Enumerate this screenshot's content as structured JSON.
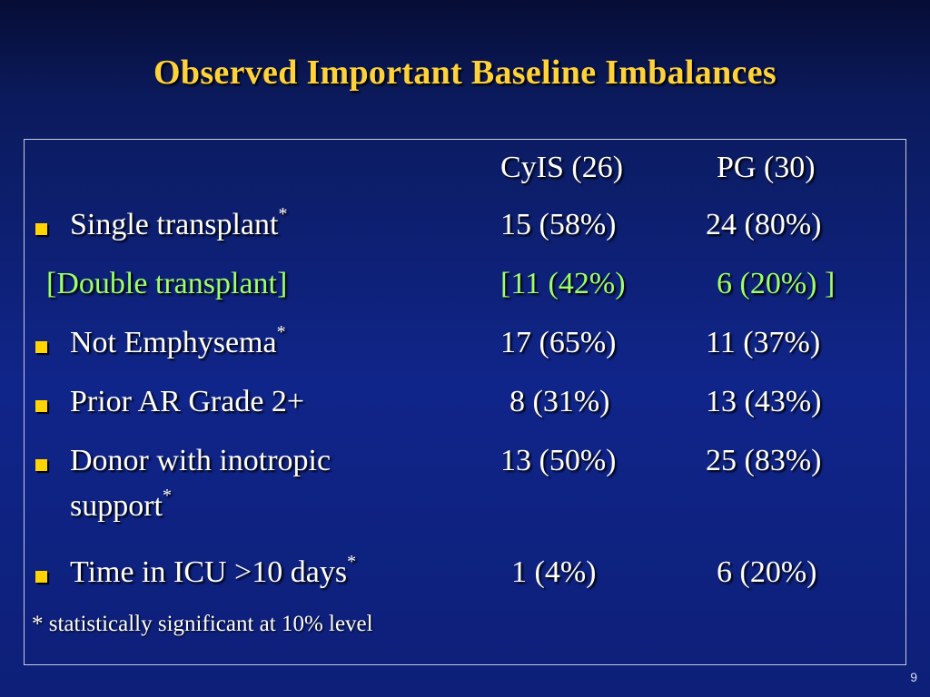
{
  "slide": {
    "title": "Observed Important Baseline Imbalances",
    "number": "9"
  },
  "table": {
    "headers": [
      "CyIS (26)",
      "PG (30)"
    ],
    "rows": [
      {
        "label": "Single transplant",
        "marker": "*",
        "bulleted": true,
        "cyis": "15 (58%)",
        "pg": "24 (80%)"
      },
      {
        "label": "[Double transplant]",
        "marker": "",
        "bulleted": false,
        "cyis": "[11 (42%)",
        "pg": "6 (20%) ]"
      },
      {
        "label": "Not Emphysema",
        "marker": "*",
        "bulleted": true,
        "cyis": "17 (65%)",
        "pg": "11 (37%)"
      },
      {
        "label": "Prior AR Grade 2+",
        "marker": "",
        "bulleted": true,
        "cyis": "8 (31%)",
        "pg": "13 (43%)"
      },
      {
        "label": "Donor with inotropic",
        "label_line2": "support",
        "marker": "*",
        "bulleted": true,
        "cyis": "13 (50%)",
        "pg": "25 (83%)"
      },
      {
        "label": "Time in ICU >10 days",
        "marker": "*",
        "bulleted": true,
        "cyis": "1 (4%)",
        "pg": "6 (20%)"
      }
    ],
    "footnote": "* statistically significant at 10% level"
  },
  "colors": {
    "title": "#ffd23a",
    "text": "#ffffff",
    "highlight_row": "#9dff6a",
    "bullet": "#ffd400",
    "background": "#10258a"
  }
}
